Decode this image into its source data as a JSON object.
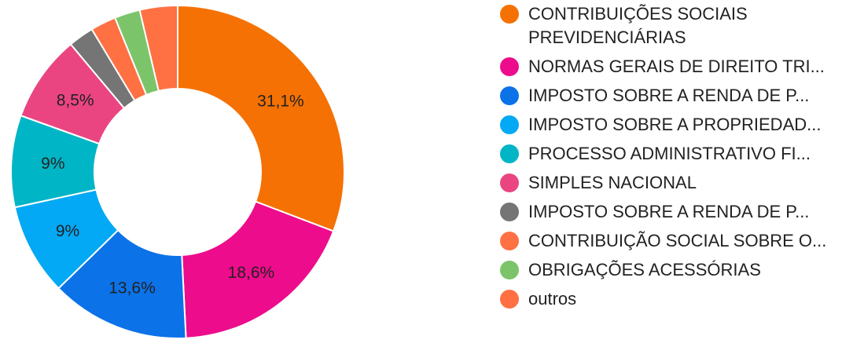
{
  "chart_data": {
    "type": "pie",
    "donut": true,
    "legend_position": "right",
    "series": [
      {
        "name": "CONTRIBUIÇÕES SOCIAIS PREVIDENCIÁRIAS",
        "value": 31.1,
        "label": "31,1%",
        "color": "#f57103"
      },
      {
        "name": "NORMAS GERAIS DE DIREITO TRI...",
        "value": 18.6,
        "label": "18,6%",
        "color": "#ed0c8c"
      },
      {
        "name": "IMPOSTO SOBRE A RENDA DE P...",
        "value": 13.6,
        "label": "13,6%",
        "color": "#0b72e8"
      },
      {
        "name": "IMPOSTO SOBRE A PROPRIEDAD...",
        "value": 9.0,
        "label": "9%",
        "color": "#03a9f4"
      },
      {
        "name": "PROCESSO ADMINISTRATIVO FI...",
        "value": 9.0,
        "label": "9%",
        "color": "#00b5c6"
      },
      {
        "name": "SIMPLES NACIONAL",
        "value": 8.5,
        "label": "8,5%",
        "color": "#ea4581"
      },
      {
        "name": "IMPOSTO SOBRE A RENDA DE P...",
        "value": 2.5,
        "label": "",
        "color": "#757575"
      },
      {
        "name": "CONTRIBUIÇÃO SOCIAL SOBRE O...",
        "value": 2.5,
        "label": "",
        "color": "#ff7043"
      },
      {
        "name": "OBRIGAÇÕES ACESSÓRIAS",
        "value": 2.5,
        "label": "",
        "color": "#7cc46a"
      },
      {
        "name": "outros",
        "value": 3.7,
        "label": "",
        "color": "#ff7043"
      }
    ]
  }
}
